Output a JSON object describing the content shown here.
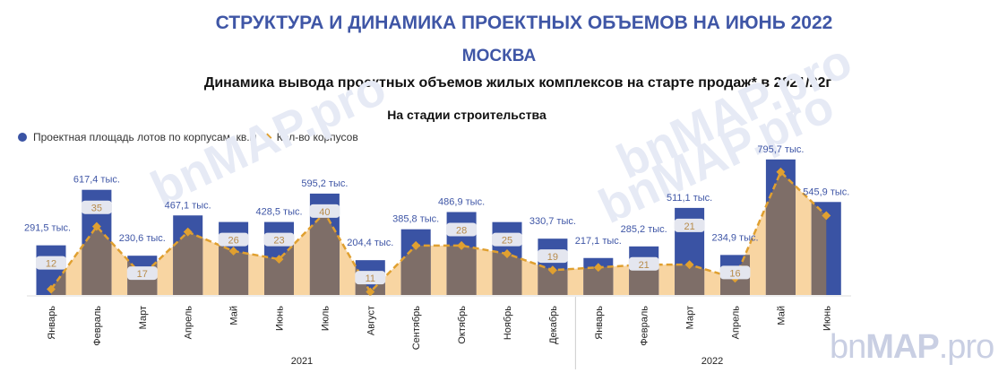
{
  "header": {
    "title": "СТРУКТУРА И  ДИНАМИКА ПРОЕКТНЫХ ОБЪЕМОВ  НА ИЮНЬ 2022",
    "city": "МОСКВА",
    "subtitle": "Динамика вывода проектных объемов  жилых комплексов на старте продаж* в 2021/22г"
  },
  "watermark": {
    "logo_text_light": "bn",
    "logo_text_bold": "MAP",
    "logo_text_tail": ".pro"
  },
  "chart_data": {
    "type": "bar+line",
    "title": "На стадии строительства",
    "legend_placement": "top-left",
    "categories": [
      "Январь",
      "Февраль",
      "Март",
      "Апрель",
      "Май",
      "Июнь",
      "Июль",
      "Август",
      "Сентябрь",
      "Октябрь",
      "Ноябрь",
      "Декабрь",
      "Январь",
      "Февраль",
      "Март",
      "Апрель",
      "Май",
      "Июнь"
    ],
    "years": [
      {
        "label": "2021",
        "count": 12
      },
      {
        "label": "2022",
        "count": 6
      }
    ],
    "series": [
      {
        "name": "Проектная площадь лотов по корпусам, кв.м",
        "type": "bar",
        "color": "#3a53a4",
        "values": [
          291.5,
          617.4,
          230.6,
          467.1,
          428.5,
          428.5,
          595.2,
          204.4,
          385.8,
          486.9,
          428.0,
          330.7,
          217.1,
          285.2,
          511.1,
          234.9,
          795.7,
          545.9
        ],
        "labels": [
          "291,5 тыс.",
          "617,4 тыс.",
          "230,6 тыс.",
          "467,1 тыс.",
          "",
          "428,5 тыс.",
          "595,2 тыс.",
          "204,4 тыс.",
          "385,8 тыс.",
          "486,9 тыс.",
          "",
          "330,7 тыс.",
          "217,1 тыс.",
          "285,2 тыс.",
          "511,1 тыс.",
          "234,9 тыс.",
          "795,7 тыс.",
          "545,9 тыс."
        ]
      },
      {
        "name": "Кол-во корпусов",
        "type": "line",
        "color": "#e0a030",
        "values": [
          12,
          35,
          17,
          33,
          26,
          23,
          40,
          11,
          28,
          28,
          25,
          19,
          20,
          21,
          21,
          16,
          55,
          39
        ],
        "labels": [
          "12",
          "35",
          "17",
          "",
          "26",
          "23",
          "40",
          "11",
          "",
          "28",
          "25",
          "19",
          "",
          "21",
          "21",
          "16",
          "",
          ""
        ]
      }
    ]
  }
}
